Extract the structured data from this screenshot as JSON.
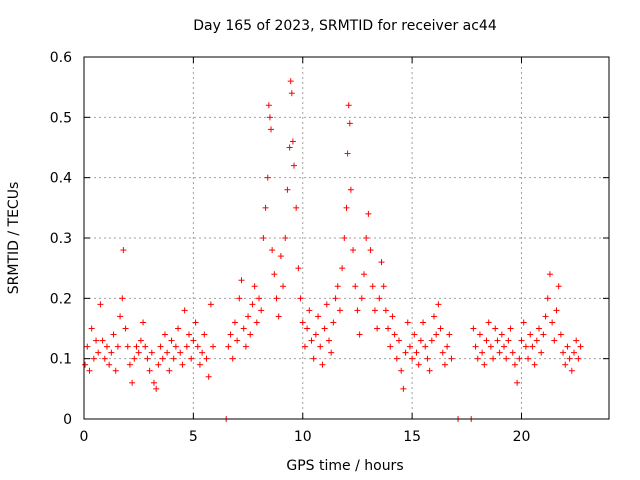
{
  "chart_data": {
    "type": "scatter",
    "title": "Day 165 of 2023, SRMTID for receiver ac44",
    "xlabel": "GPS time / hours",
    "ylabel": "SRMTID / TECUs",
    "xlim": [
      0,
      24
    ],
    "ylim": [
      0,
      0.6
    ],
    "x_ticks": [
      0,
      5,
      10,
      15,
      20
    ],
    "x_tick_labels": [
      "0",
      "5",
      "10",
      "15",
      "20"
    ],
    "y_ticks": [
      0,
      0.1,
      0.2,
      0.3,
      0.4,
      0.5,
      0.6
    ],
    "y_tick_labels": [
      "0",
      "0.1",
      "0.2",
      "0.3",
      "0.4",
      "0.5",
      "0.6"
    ],
    "grid": true,
    "marker": "+",
    "color": "#ff0000",
    "series": [
      {
        "name": "SRMTID",
        "points": [
          [
            0.05,
            0.09
          ],
          [
            0.15,
            0.12
          ],
          [
            0.25,
            0.08
          ],
          [
            0.35,
            0.15
          ],
          [
            0.45,
            0.1
          ],
          [
            0.55,
            0.13
          ],
          [
            0.65,
            0.11
          ],
          [
            0.75,
            0.19
          ],
          [
            0.85,
            0.13
          ],
          [
            0.95,
            0.1
          ],
          [
            1.05,
            0.12
          ],
          [
            1.15,
            0.09
          ],
          [
            1.25,
            0.11
          ],
          [
            1.35,
            0.14
          ],
          [
            1.45,
            0.08
          ],
          [
            1.55,
            0.12
          ],
          [
            1.65,
            0.17
          ],
          [
            1.75,
            0.2
          ],
          [
            1.8,
            0.28
          ],
          [
            1.9,
            0.15
          ],
          [
            2.0,
            0.12
          ],
          [
            2.1,
            0.09
          ],
          [
            2.2,
            0.06
          ],
          [
            2.3,
            0.1
          ],
          [
            2.4,
            0.12
          ],
          [
            2.5,
            0.11
          ],
          [
            2.6,
            0.13
          ],
          [
            2.7,
            0.16
          ],
          [
            2.8,
            0.12
          ],
          [
            2.9,
            0.1
          ],
          [
            3.0,
            0.08
          ],
          [
            3.1,
            0.11
          ],
          [
            3.2,
            0.06
          ],
          [
            3.3,
            0.05
          ],
          [
            3.4,
            0.09
          ],
          [
            3.5,
            0.12
          ],
          [
            3.6,
            0.1
          ],
          [
            3.7,
            0.14
          ],
          [
            3.8,
            0.11
          ],
          [
            3.9,
            0.08
          ],
          [
            4.0,
            0.13
          ],
          [
            4.1,
            0.1
          ],
          [
            4.2,
            0.12
          ],
          [
            4.3,
            0.15
          ],
          [
            4.4,
            0.11
          ],
          [
            4.5,
            0.09
          ],
          [
            4.6,
            0.18
          ],
          [
            4.7,
            0.12
          ],
          [
            4.8,
            0.14
          ],
          [
            4.9,
            0.1
          ],
          [
            5.0,
            0.13
          ],
          [
            5.1,
            0.16
          ],
          [
            5.2,
            0.12
          ],
          [
            5.3,
            0.09
          ],
          [
            5.4,
            0.11
          ],
          [
            5.5,
            0.14
          ],
          [
            5.6,
            0.1
          ],
          [
            5.7,
            0.07
          ],
          [
            5.8,
            0.19
          ],
          [
            5.9,
            0.12
          ],
          [
            6.5,
            0.0
          ],
          [
            6.6,
            0.12
          ],
          [
            6.7,
            0.14
          ],
          [
            6.8,
            0.1
          ],
          [
            6.9,
            0.16
          ],
          [
            7.0,
            0.13
          ],
          [
            7.1,
            0.2
          ],
          [
            7.2,
            0.23
          ],
          [
            7.3,
            0.15
          ],
          [
            7.4,
            0.12
          ],
          [
            7.5,
            0.17
          ],
          [
            7.6,
            0.14
          ],
          [
            7.7,
            0.19
          ],
          [
            7.8,
            0.22
          ],
          [
            7.9,
            0.16
          ],
          [
            8.0,
            0.2
          ],
          [
            8.1,
            0.18
          ],
          [
            8.2,
            0.3
          ],
          [
            8.3,
            0.35
          ],
          [
            8.4,
            0.4
          ],
          [
            8.45,
            0.52
          ],
          [
            8.5,
            0.5
          ],
          [
            8.55,
            0.48
          ],
          [
            8.6,
            0.28
          ],
          [
            8.7,
            0.24
          ],
          [
            8.8,
            0.2
          ],
          [
            8.9,
            0.17
          ],
          [
            9.0,
            0.27
          ],
          [
            9.1,
            0.22
          ],
          [
            9.2,
            0.3
          ],
          [
            9.3,
            0.38
          ],
          [
            9.4,
            0.45
          ],
          [
            9.45,
            0.56
          ],
          [
            9.5,
            0.54
          ],
          [
            9.55,
            0.46
          ],
          [
            9.6,
            0.42
          ],
          [
            9.7,
            0.35
          ],
          [
            9.8,
            0.25
          ],
          [
            9.9,
            0.2
          ],
          [
            10.0,
            0.16
          ],
          [
            10.1,
            0.12
          ],
          [
            10.2,
            0.15
          ],
          [
            10.3,
            0.18
          ],
          [
            10.4,
            0.13
          ],
          [
            10.5,
            0.1
          ],
          [
            10.6,
            0.14
          ],
          [
            10.7,
            0.17
          ],
          [
            10.8,
            0.12
          ],
          [
            10.9,
            0.09
          ],
          [
            11.0,
            0.15
          ],
          [
            11.1,
            0.19
          ],
          [
            11.2,
            0.13
          ],
          [
            11.3,
            0.11
          ],
          [
            11.4,
            0.16
          ],
          [
            11.5,
            0.2
          ],
          [
            11.6,
            0.22
          ],
          [
            11.7,
            0.18
          ],
          [
            11.8,
            0.25
          ],
          [
            11.9,
            0.3
          ],
          [
            12.0,
            0.35
          ],
          [
            12.05,
            0.44
          ],
          [
            12.1,
            0.52
          ],
          [
            12.15,
            0.49
          ],
          [
            12.2,
            0.38
          ],
          [
            12.3,
            0.28
          ],
          [
            12.4,
            0.22
          ],
          [
            12.5,
            0.18
          ],
          [
            12.6,
            0.14
          ],
          [
            12.7,
            0.2
          ],
          [
            12.8,
            0.24
          ],
          [
            12.9,
            0.3
          ],
          [
            13.0,
            0.34
          ],
          [
            13.1,
            0.28
          ],
          [
            13.2,
            0.22
          ],
          [
            13.3,
            0.18
          ],
          [
            13.4,
            0.15
          ],
          [
            13.5,
            0.2
          ],
          [
            13.6,
            0.26
          ],
          [
            13.7,
            0.22
          ],
          [
            13.8,
            0.18
          ],
          [
            13.9,
            0.15
          ],
          [
            14.0,
            0.12
          ],
          [
            14.1,
            0.17
          ],
          [
            14.2,
            0.14
          ],
          [
            14.3,
            0.1
          ],
          [
            14.4,
            0.13
          ],
          [
            14.5,
            0.08
          ],
          [
            14.6,
            0.05
          ],
          [
            14.7,
            0.11
          ],
          [
            14.8,
            0.16
          ],
          [
            14.9,
            0.12
          ],
          [
            15.0,
            0.1
          ],
          [
            15.1,
            0.14
          ],
          [
            15.2,
            0.11
          ],
          [
            15.3,
            0.09
          ],
          [
            15.4,
            0.13
          ],
          [
            15.5,
            0.16
          ],
          [
            15.6,
            0.12
          ],
          [
            15.7,
            0.1
          ],
          [
            15.8,
            0.08
          ],
          [
            15.9,
            0.13
          ],
          [
            16.0,
            0.17
          ],
          [
            16.1,
            0.14
          ],
          [
            16.2,
            0.19
          ],
          [
            16.3,
            0.15
          ],
          [
            16.4,
            0.11
          ],
          [
            16.5,
            0.09
          ],
          [
            16.6,
            0.12
          ],
          [
            16.7,
            0.14
          ],
          [
            16.8,
            0.1
          ],
          [
            17.1,
            0.0
          ],
          [
            17.7,
            0.0
          ],
          [
            17.8,
            0.15
          ],
          [
            17.9,
            0.12
          ],
          [
            18.0,
            0.1
          ],
          [
            18.1,
            0.14
          ],
          [
            18.2,
            0.11
          ],
          [
            18.3,
            0.09
          ],
          [
            18.4,
            0.13
          ],
          [
            18.5,
            0.16
          ],
          [
            18.6,
            0.12
          ],
          [
            18.7,
            0.1
          ],
          [
            18.8,
            0.15
          ],
          [
            18.9,
            0.13
          ],
          [
            19.0,
            0.11
          ],
          [
            19.1,
            0.14
          ],
          [
            19.2,
            0.12
          ],
          [
            19.3,
            0.1
          ],
          [
            19.4,
            0.13
          ],
          [
            19.5,
            0.15
          ],
          [
            19.6,
            0.11
          ],
          [
            19.7,
            0.09
          ],
          [
            19.8,
            0.06
          ],
          [
            19.9,
            0.1
          ],
          [
            20.0,
            0.13
          ],
          [
            20.1,
            0.16
          ],
          [
            20.2,
            0.12
          ],
          [
            20.3,
            0.1
          ],
          [
            20.4,
            0.14
          ],
          [
            20.5,
            0.12
          ],
          [
            20.6,
            0.09
          ],
          [
            20.7,
            0.13
          ],
          [
            20.8,
            0.15
          ],
          [
            20.9,
            0.11
          ],
          [
            21.0,
            0.14
          ],
          [
            21.1,
            0.17
          ],
          [
            21.2,
            0.2
          ],
          [
            21.3,
            0.24
          ],
          [
            21.4,
            0.16
          ],
          [
            21.5,
            0.13
          ],
          [
            21.6,
            0.18
          ],
          [
            21.7,
            0.22
          ],
          [
            21.8,
            0.14
          ],
          [
            21.9,
            0.11
          ],
          [
            22.0,
            0.09
          ],
          [
            22.1,
            0.12
          ],
          [
            22.2,
            0.1
          ],
          [
            22.3,
            0.08
          ],
          [
            22.4,
            0.11
          ],
          [
            22.5,
            0.13
          ],
          [
            22.6,
            0.1
          ],
          [
            22.7,
            0.12
          ]
        ]
      }
    ]
  }
}
